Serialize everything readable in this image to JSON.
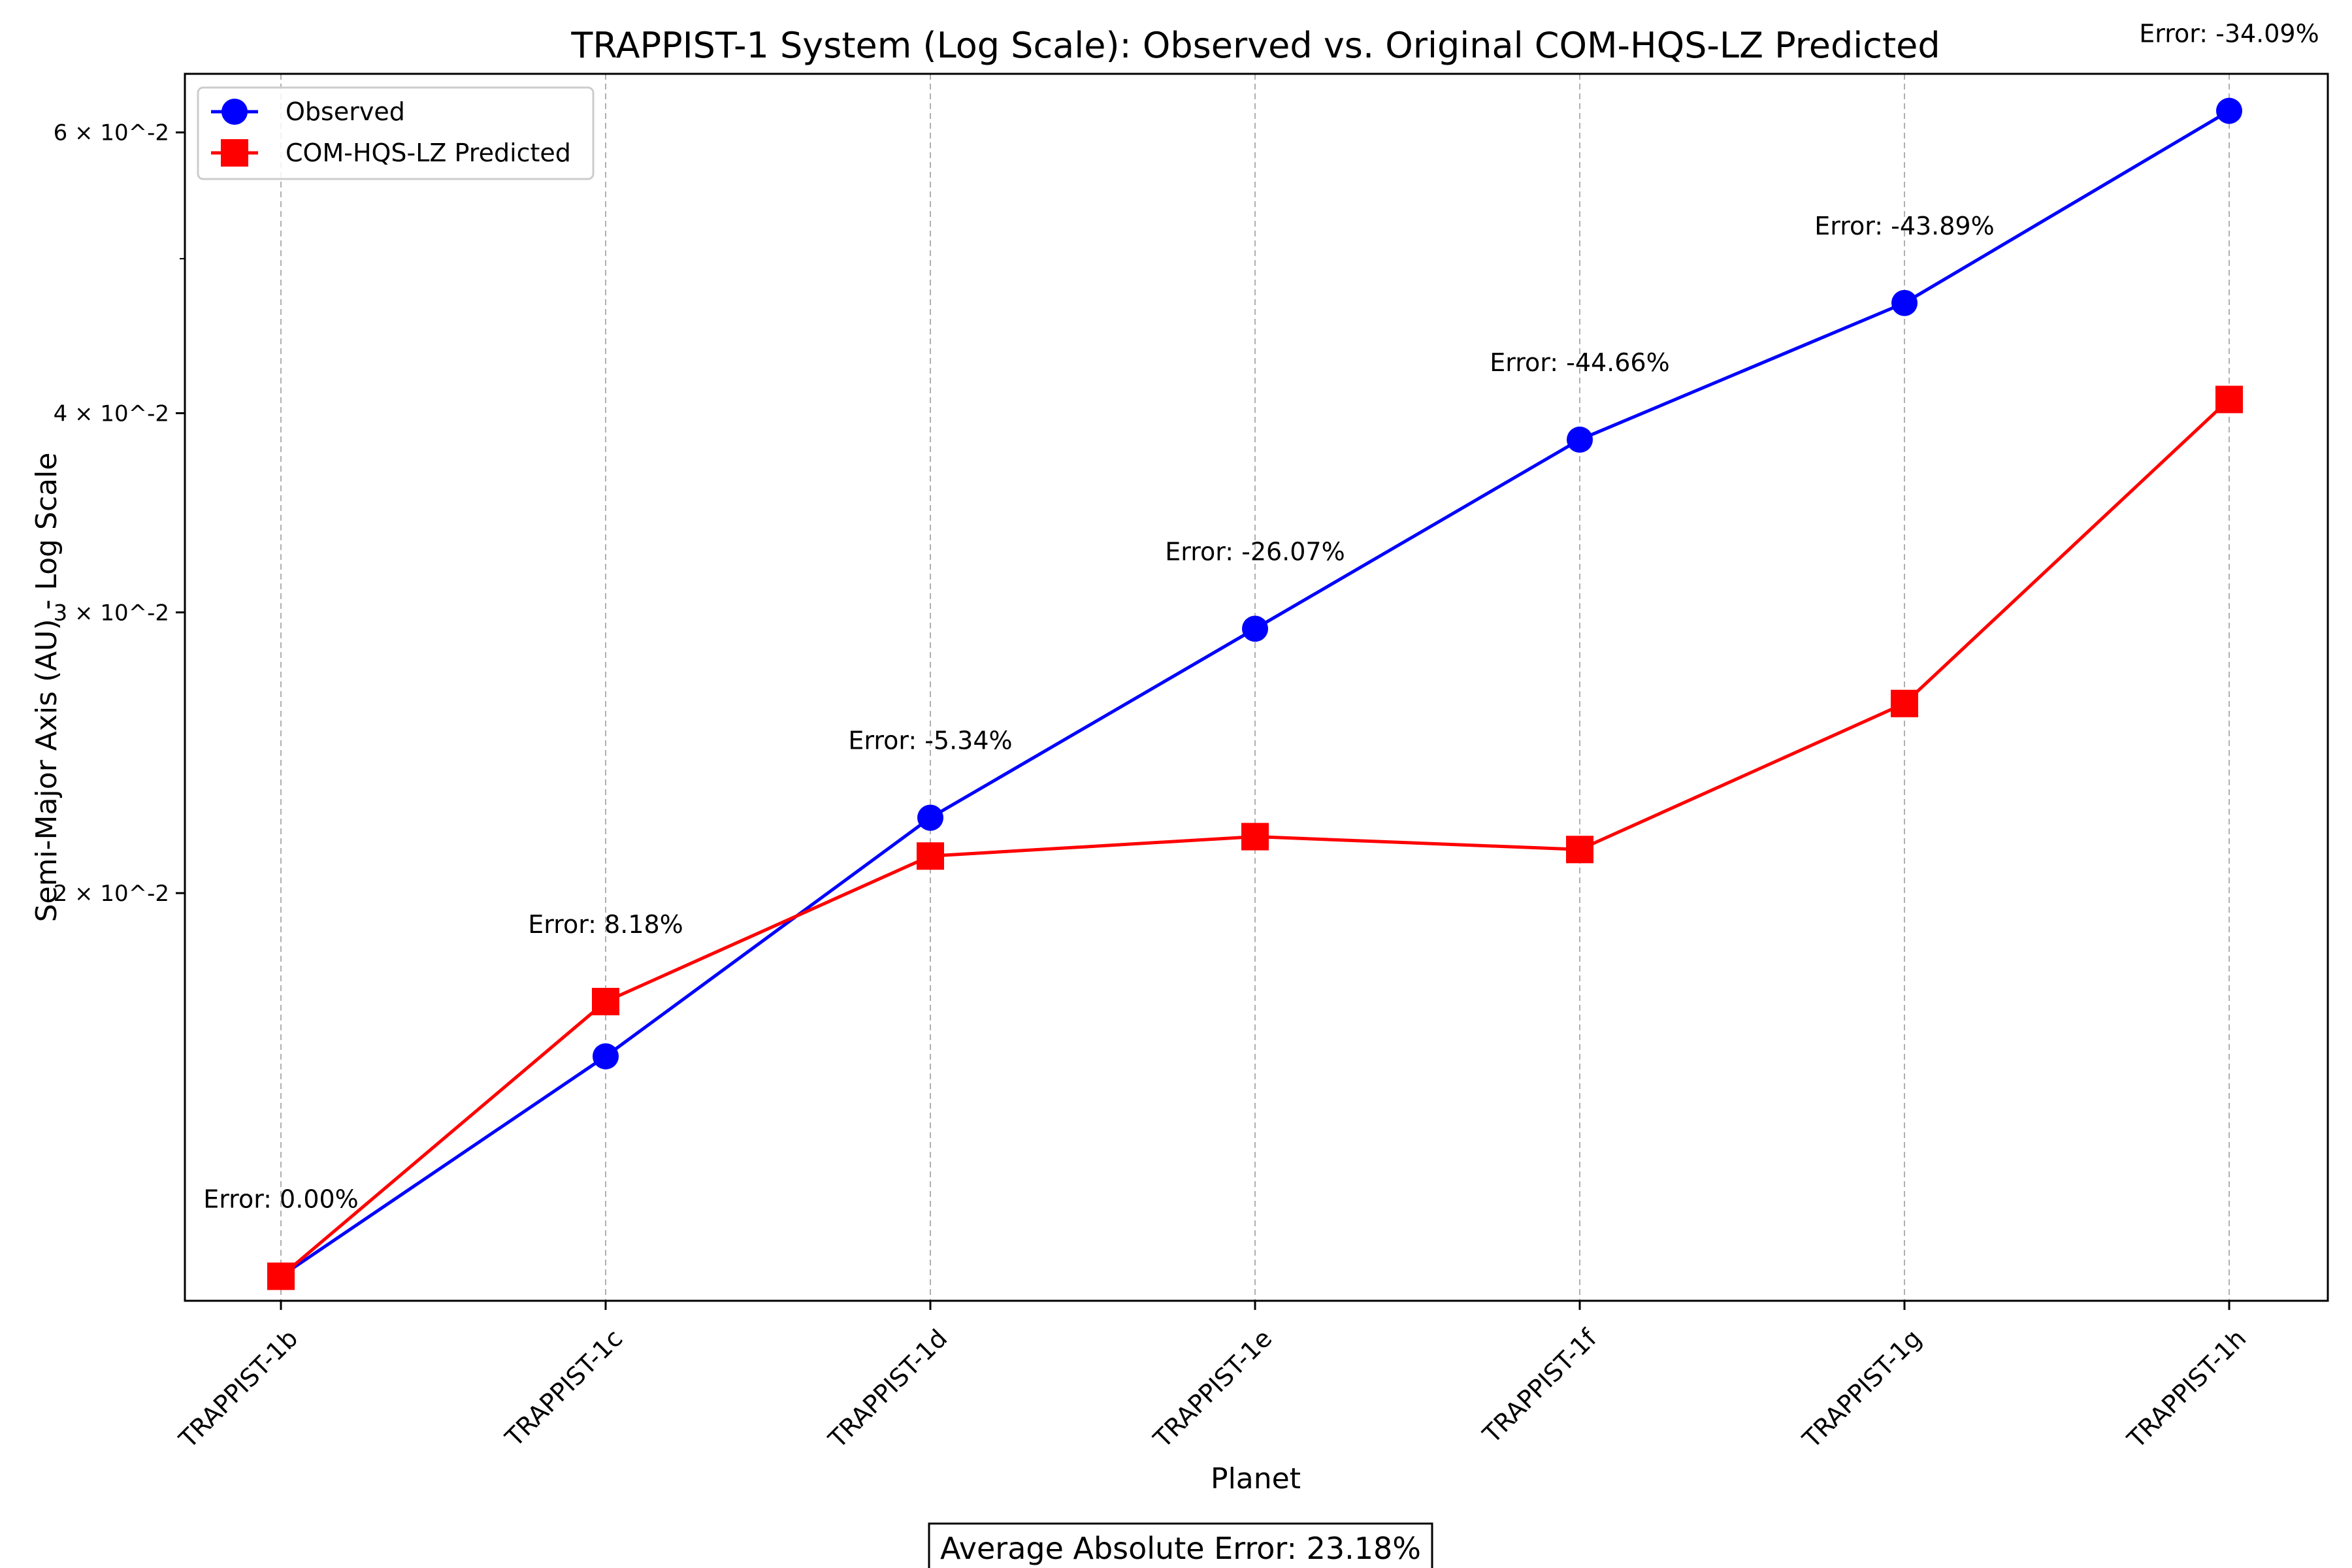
{
  "chart_data": {
    "type": "line",
    "title": "TRAPPIST-1 System (Log Scale): Observed vs. Original COM-HQS-LZ Predicted",
    "xlabel": "Planet",
    "ylabel": "Semi-Major Axis (AU) - Log Scale",
    "y_scale": "log",
    "ylim": [
      0.0111,
      0.0653
    ],
    "grid": "x-only, dashed",
    "legend": "top-left",
    "categories": [
      "TRAPPIST-1b",
      "TRAPPIST-1c",
      "TRAPPIST-1d",
      "TRAPPIST-1e",
      "TRAPPIST-1f",
      "TRAPPIST-1g",
      "TRAPPIST-1h"
    ],
    "y_ticks": [
      {
        "value": 0.02,
        "label": "2 × 10^-2"
      },
      {
        "value": 0.03,
        "label": "3 × 10^-2"
      },
      {
        "value": 0.04,
        "label": "4 × 10^-2"
      },
      {
        "value": 0.06,
        "label": "6 × 10^-2"
      }
    ],
    "y_minor_ticks": [
      0.05
    ],
    "series": [
      {
        "name": "Observed",
        "color": "#0000ff",
        "marker": "circle",
        "values": [
          0.0115,
          0.0158,
          0.0223,
          0.0293,
          0.0385,
          0.0469,
          0.0619
        ]
      },
      {
        "name": "COM-HQS-LZ Predicted",
        "color": "#ff0000",
        "marker": "square",
        "values": [
          0.0115,
          0.0171,
          0.0211,
          0.0217,
          0.0213,
          0.0263,
          0.0408
        ]
      }
    ],
    "annotations": [
      "Error: 0.00%",
      "Error: 8.18%",
      "Error: -5.34%",
      "Error: -26.07%",
      "Error: -44.66%",
      "Error: -43.89%",
      "Error: -34.09%"
    ],
    "footer": "Average Absolute Error: 23.18%"
  }
}
